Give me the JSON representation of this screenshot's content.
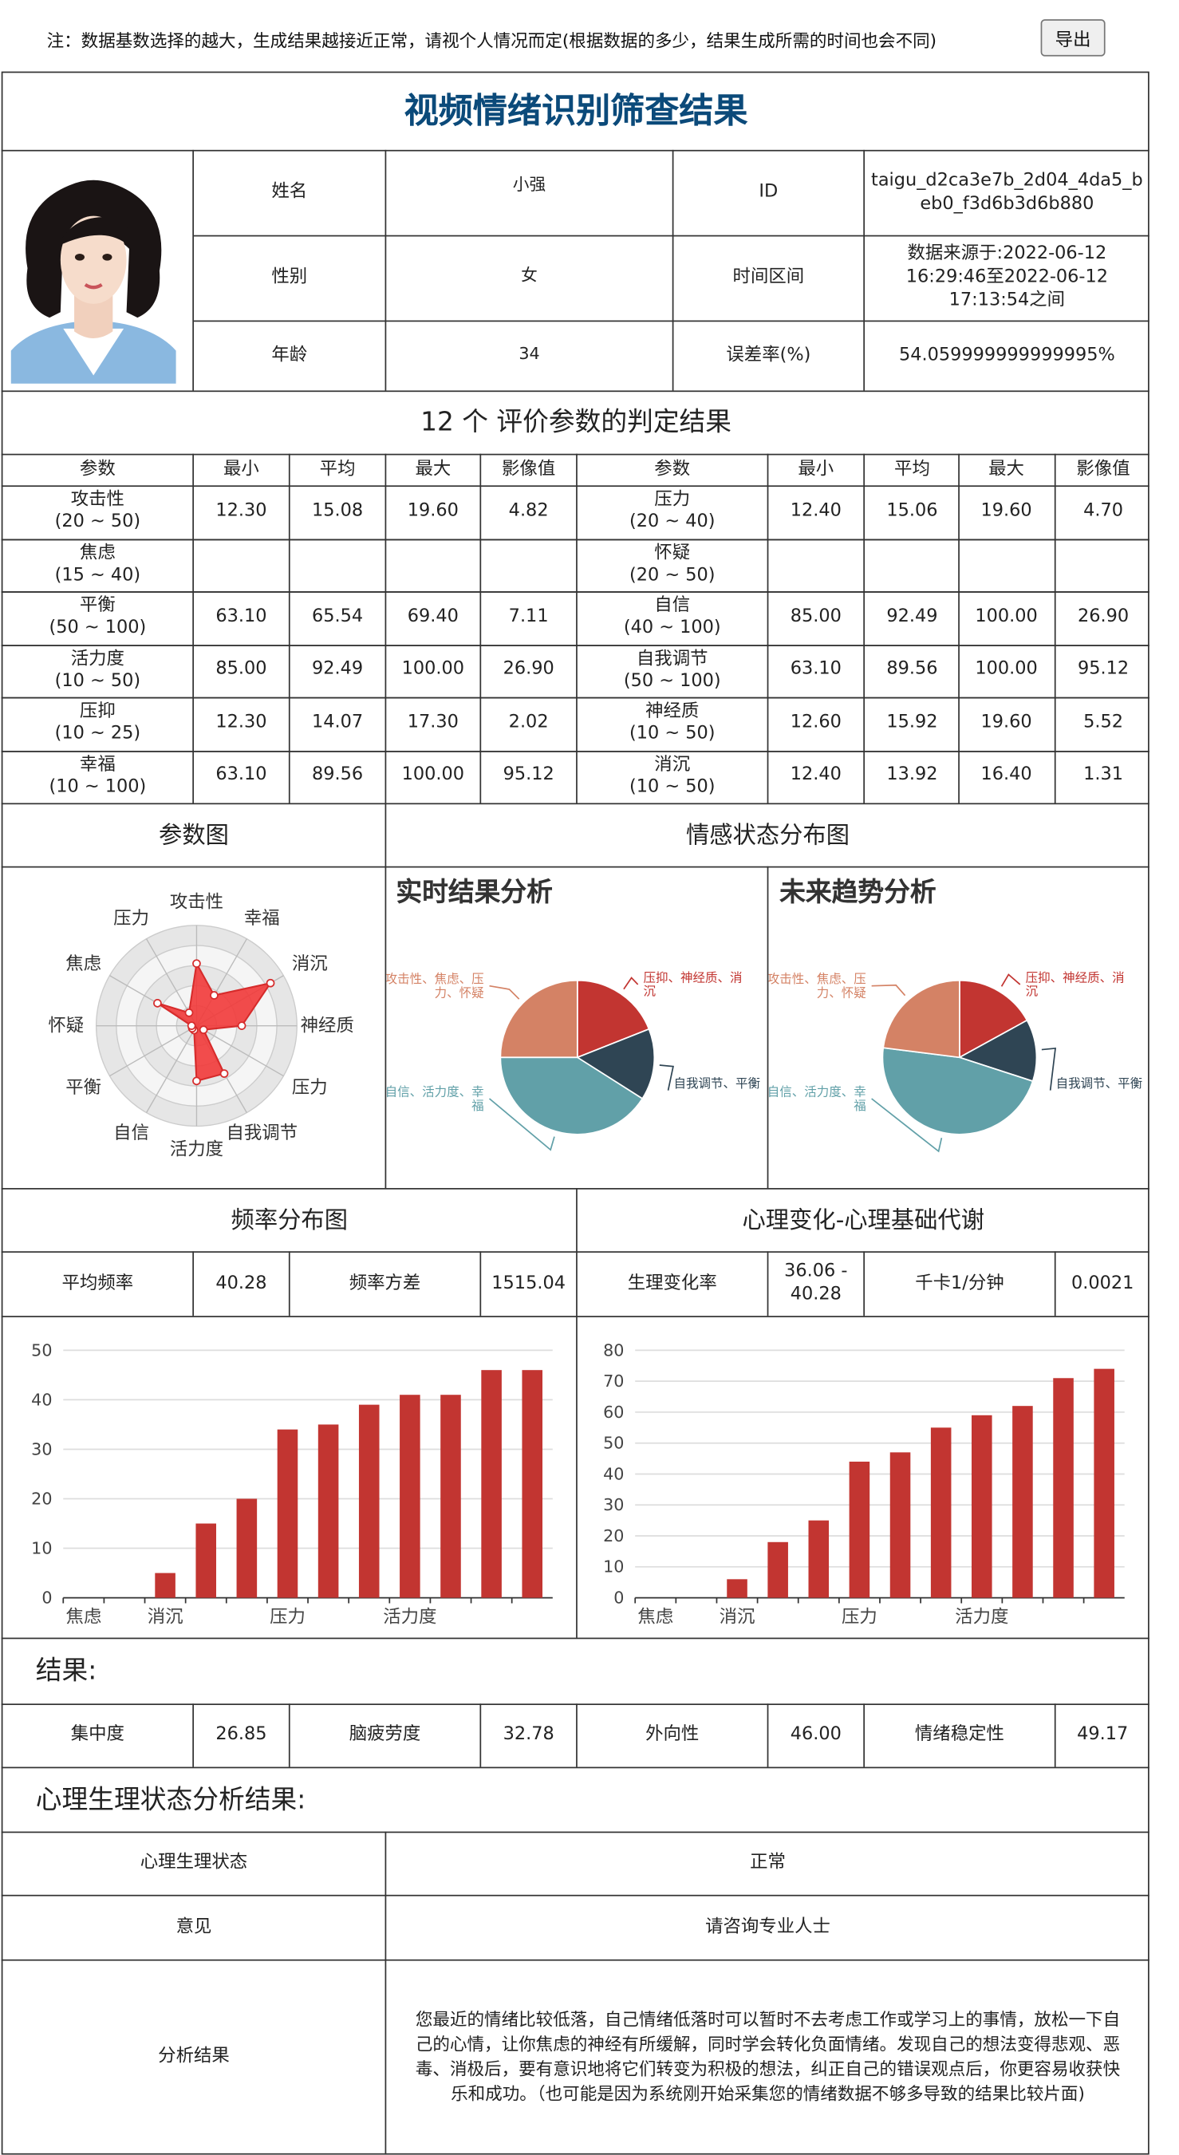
{
  "note": "注：数据基数选择的越大，生成结果越接近正常，请视个人情况而定(根据数据的多少，结果生成所需的时间也会不同)",
  "export_label": "导出",
  "title": "视频情绪识别筛查结果",
  "profile": {
    "name_label": "姓名",
    "name": "小强",
    "id_label": "ID",
    "id": "taigu_d2ca3e7b_2d04_4da5_beb0_f3d6b3d6b880",
    "gender_label": "性别",
    "gender": "女",
    "period_label": "时间区间",
    "period": "数据来源于:2022-06-12 16:29:46至2022-06-12 17:13:54之间",
    "age_label": "年龄",
    "age": "34",
    "error_label": "误差率(%)",
    "error": "54.059999999999995%"
  },
  "params_title": "12 个 评价参数的判定结果",
  "param_headers": [
    "参数",
    "最小",
    "平均",
    "最大",
    "影像值"
  ],
  "params_left": [
    {
      "name": "攻击性",
      "range": "(20 ~ 50)",
      "min": "12.30",
      "avg": "15.08",
      "max": "19.60",
      "img": "4.82"
    },
    {
      "name": "焦虑",
      "range": "(15 ~ 40)",
      "min": "",
      "avg": "",
      "max": "",
      "img": "",
      "empty": true
    },
    {
      "name": "平衡",
      "range": "(50 ~ 100)",
      "min": "63.10",
      "avg": "65.54",
      "max": "69.40",
      "img": "7.11"
    },
    {
      "name": "活力度",
      "range": "(10 ~ 50)",
      "min": "85.00",
      "avg": "92.49",
      "max": "100.00",
      "img": "26.90"
    },
    {
      "name": "压抑",
      "range": "(10 ~ 25)",
      "min": "12.30",
      "avg": "14.07",
      "max": "17.30",
      "img": "2.02"
    },
    {
      "name": "幸福",
      "range": "(10 ~ 100)",
      "min": "63.10",
      "avg": "89.56",
      "max": "100.00",
      "img": "95.12"
    }
  ],
  "params_right": [
    {
      "name": "压力",
      "range": "(20 ~ 40)",
      "min": "12.40",
      "avg": "15.06",
      "max": "19.60",
      "img": "4.70"
    },
    {
      "name": "怀疑",
      "range": "(20 ~ 50)",
      "min": "",
      "avg": "",
      "max": "",
      "img": "",
      "empty": true
    },
    {
      "name": "自信",
      "range": "(40 ~ 100)",
      "min": "85.00",
      "avg": "92.49",
      "max": "100.00",
      "img": "26.90"
    },
    {
      "name": "自我调节",
      "range": "(50 ~ 100)",
      "min": "63.10",
      "avg": "89.56",
      "max": "100.00",
      "img": "95.12"
    },
    {
      "name": "神经质",
      "range": "(10 ~ 50)",
      "min": "12.60",
      "avg": "15.92",
      "max": "19.60",
      "img": "5.52"
    },
    {
      "name": "消沉",
      "range": "(10 ~ 50)",
      "min": "12.40",
      "avg": "13.92",
      "max": "16.40",
      "img": "1.31"
    }
  ],
  "param_chart_title": "参数图",
  "emotion_title": "情感状态分布图",
  "realtime_title": "实时结果分析",
  "future_title": "未来趋势分析",
  "freq_title": "频率分布图",
  "psych_title": "心理变化-心理基础代谢",
  "freq_stats": [
    {
      "label": "平均频率",
      "value": "40.28"
    },
    {
      "label": "频率方差",
      "value": "1515.04"
    },
    {
      "label": "生理变化率",
      "value": "36.06 - 40.28"
    },
    {
      "label": "千卡1/分钟",
      "value": "0.0021"
    }
  ],
  "result_label": "结果:",
  "results": [
    {
      "label": "集中度",
      "value": "26.85"
    },
    {
      "label": "脑疲劳度",
      "value": "32.78"
    },
    {
      "label": "外向性",
      "value": "46.00"
    },
    {
      "label": "情绪稳定性",
      "value": "49.17"
    }
  ],
  "analysis_label": "心理生理状态分析结果:",
  "analysis": {
    "state_label": "心理生理状态",
    "state": "正常",
    "opinion_label": "意见",
    "opinion": "请咨询专业人士",
    "result_label": "分析结果",
    "result": "您最近的情绪比较低落，自己情绪低落时可以暂时不去考虑工作或学习上的事情，放松一下自己的心情，让你焦虑的神经有所缓解，同时学会转化负面情绪。发现自己的想法变得悲观、恶毒、消极后，要有意识地将它们转变为积极的想法，纠正自己的错误观点后，你更容易收获快乐和成功。（也可能是因为系统刚开始采集您的情绪数据不够多导致的结果比较片面)"
  },
  "colors": {
    "bar": "#c23531",
    "title": "#0b4a7a",
    "radar_fill": "#f23a3a",
    "pie": [
      "#c23531",
      "#2f4554",
      "#61a0a8",
      "#d48265"
    ]
  },
  "chart_data": [
    {
      "type": "radar",
      "indicators": [
        "攻击性",
        "幸福",
        "消沉",
        "神经质",
        "压力",
        "自我调节",
        "活力度",
        "自信",
        "平衡",
        "怀疑",
        "焦虑",
        "压力"
      ],
      "values": [
        0.62,
        0.35,
        0.85,
        0.45,
        0.08,
        0.55,
        0.55,
        0.05,
        0.05,
        0.05,
        0.45,
        0.15
      ]
    },
    {
      "type": "pie",
      "title": "实时结果分析",
      "labels": [
        "压抑、神经质、消沉",
        "自我调节、平衡",
        "自信、活力度、幸福",
        "攻击性、焦虑、压力、怀疑"
      ],
      "values": [
        19,
        15,
        41,
        25
      ]
    },
    {
      "type": "pie",
      "title": "未来趋势分析",
      "labels": [
        "压抑、神经质、消沉",
        "自我调节、平衡",
        "自信、活力度、幸福",
        "攻击性、焦虑、压力、怀疑"
      ],
      "values": [
        17,
        13,
        47,
        23
      ]
    },
    {
      "type": "bar",
      "categories": [
        "焦虑",
        "",
        "消沉",
        "",
        "",
        "压力",
        "",
        "",
        "活力度",
        "",
        "",
        ""
      ],
      "values": [
        0,
        0,
        5,
        15,
        20,
        34,
        35,
        39,
        41,
        41,
        46,
        46
      ],
      "ylim": [
        0,
        50
      ],
      "yticks": [
        0,
        10,
        20,
        30,
        40,
        50
      ]
    },
    {
      "type": "bar",
      "categories": [
        "焦虑",
        "",
        "消沉",
        "",
        "",
        "压力",
        "",
        "",
        "活力度",
        "",
        "",
        ""
      ],
      "values": [
        0,
        0,
        6,
        18,
        25,
        44,
        47,
        55,
        59,
        62,
        71,
        74
      ],
      "ylim": [
        0,
        80
      ],
      "yticks": [
        0,
        10,
        20,
        30,
        40,
        50,
        60,
        70,
        80
      ]
    }
  ]
}
